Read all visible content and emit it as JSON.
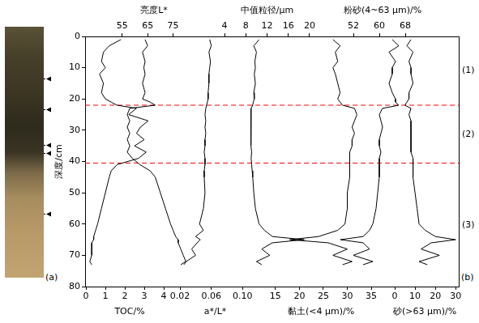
{
  "chart_data": {
    "type": "line",
    "ylabel": "深度/cm",
    "ylim": [
      80,
      0
    ],
    "yticks": [
      0,
      10,
      20,
      30,
      40,
      50,
      60,
      70,
      80
    ],
    "grid": false,
    "y": [
      1,
      3,
      5,
      8,
      10,
      12,
      15,
      18,
      20,
      21,
      22,
      23,
      25,
      27,
      29,
      31,
      33,
      35,
      37,
      39,
      41,
      43,
      45,
      50,
      55,
      60,
      62,
      64,
      65,
      66,
      68,
      70,
      72,
      73
    ],
    "series": [
      {
        "name": "TOC/%",
        "axis": "x",
        "color": "#000000",
        "xlim": [
          0,
          4.5
        ],
        "xticks": [
          0,
          1,
          2,
          3,
          4
        ],
        "values": [
          1.8,
          1.2,
          0.9,
          0.8,
          1.0,
          0.7,
          0.9,
          0.8,
          1.0,
          1.3,
          1.6,
          2.6,
          2.2,
          3.2,
          2.8,
          2.6,
          3.0,
          2.5,
          3.1,
          2.7,
          1.6,
          1.3,
          1.2,
          1.0,
          0.8,
          0.6,
          0.5,
          0.4,
          0.4,
          0.3,
          0.3,
          0.3,
          0.2,
          0.3
        ]
      },
      {
        "name": "亮度L*",
        "axis": "x2",
        "color": "#000000",
        "xlim": [
          50,
          85
        ],
        "xticks": [
          55,
          65,
          75
        ],
        "values": [
          64,
          65,
          63,
          64,
          63.5,
          64,
          63,
          64,
          63,
          66,
          68,
          58,
          57,
          58,
          57,
          58,
          57,
          58,
          57,
          59,
          62,
          66,
          68,
          70,
          72,
          74,
          75,
          76,
          77,
          77,
          78,
          79,
          80,
          78
        ]
      },
      {
        "name": "a*/L*",
        "axis": "x",
        "color": "#000000",
        "xlim": [
          0.02,
          0.11
        ],
        "xticks": [
          0.02,
          0.06,
          {
            "value": 0.1,
            "label": "0.10"
          }
        ],
        "values": [
          0.058,
          0.06,
          0.057,
          0.059,
          0.058,
          0.057,
          0.057,
          0.056,
          0.056,
          0.055,
          0.054,
          0.053,
          0.052,
          0.053,
          0.052,
          0.053,
          0.052,
          0.052,
          0.051,
          0.052,
          0.052,
          0.051,
          0.051,
          0.052,
          0.05,
          0.045,
          0.05,
          0.04,
          0.046,
          0.042,
          0.035,
          0.04,
          0.028,
          0.025
        ]
      },
      {
        "name": "中值粒径/μm",
        "axis": "x2",
        "color": "#000000",
        "xlim": [
          2,
          22
        ],
        "xticks": [
          4,
          8,
          12,
          16,
          20
        ],
        "values": [
          10.5,
          9.5,
          10,
          9.7,
          9.8,
          9.6,
          9.8,
          9.5,
          9.6,
          9.4,
          9.3,
          9.0,
          9.0,
          8.9,
          9.0,
          8.9,
          9.0,
          9.0,
          9.1,
          9.0,
          9.1,
          9.2,
          9.3,
          9.5,
          9.8,
          10.5,
          11.5,
          13,
          19,
          13,
          11,
          12.5,
          10,
          11
        ]
      },
      {
        "name": "黏土(<4 μm)/%",
        "axis": "x",
        "color": "#000000",
        "xlim": [
          13,
          36
        ],
        "xticks": [
          15,
          20,
          25,
          30,
          35
        ],
        "values": [
          27,
          28.5,
          27.5,
          28,
          27,
          27.5,
          28,
          28.5,
          28,
          28.5,
          29,
          31.5,
          32,
          31.5,
          31,
          31.5,
          31,
          31,
          30.5,
          30.5,
          30.5,
          30.5,
          30.5,
          30,
          30,
          29.5,
          28,
          24,
          18,
          26,
          30,
          27,
          31,
          29
        ]
      },
      {
        "name": "粉砂(4~63 μm)/%",
        "axis": "x2",
        "color": "#000000",
        "xlim": [
          46,
          76
        ],
        "xticks": [
          52,
          60,
          68
        ],
        "values": [
          64,
          66,
          63,
          65,
          64,
          64,
          63,
          64,
          65,
          65,
          66,
          61,
          60,
          60.5,
          61,
          60.5,
          60,
          60,
          60.5,
          60,
          60,
          60,
          60,
          59.5,
          59,
          58,
          57,
          55,
          48,
          55,
          57,
          52,
          58,
          55
        ]
      },
      {
        "name": "砂(>63 μm)/%",
        "axis": "x",
        "color": "#000000",
        "xlim": [
          -2,
          31.5
        ],
        "xticks": [
          0,
          10,
          20,
          30
        ],
        "values": [
          8,
          6,
          9,
          7,
          8,
          8,
          9,
          7,
          7,
          6,
          5,
          8,
          7,
          8,
          8,
          8,
          8,
          8,
          8,
          9,
          9,
          9,
          9,
          10,
          11,
          12,
          15,
          20,
          30,
          18,
          13,
          22,
          12,
          16
        ]
      }
    ],
    "boundaries": {
      "values": [
        22,
        40.5
      ],
      "color": "#ff0000",
      "line_style": "dashed"
    },
    "zone_labels": [
      "(1)",
      "(2)",
      "(3)"
    ],
    "panel_labels": [
      "(a)",
      "(b)"
    ],
    "photo_marker_depths": [
      13.4,
      23.2,
      34.8,
      37.2,
      56.8
    ]
  }
}
